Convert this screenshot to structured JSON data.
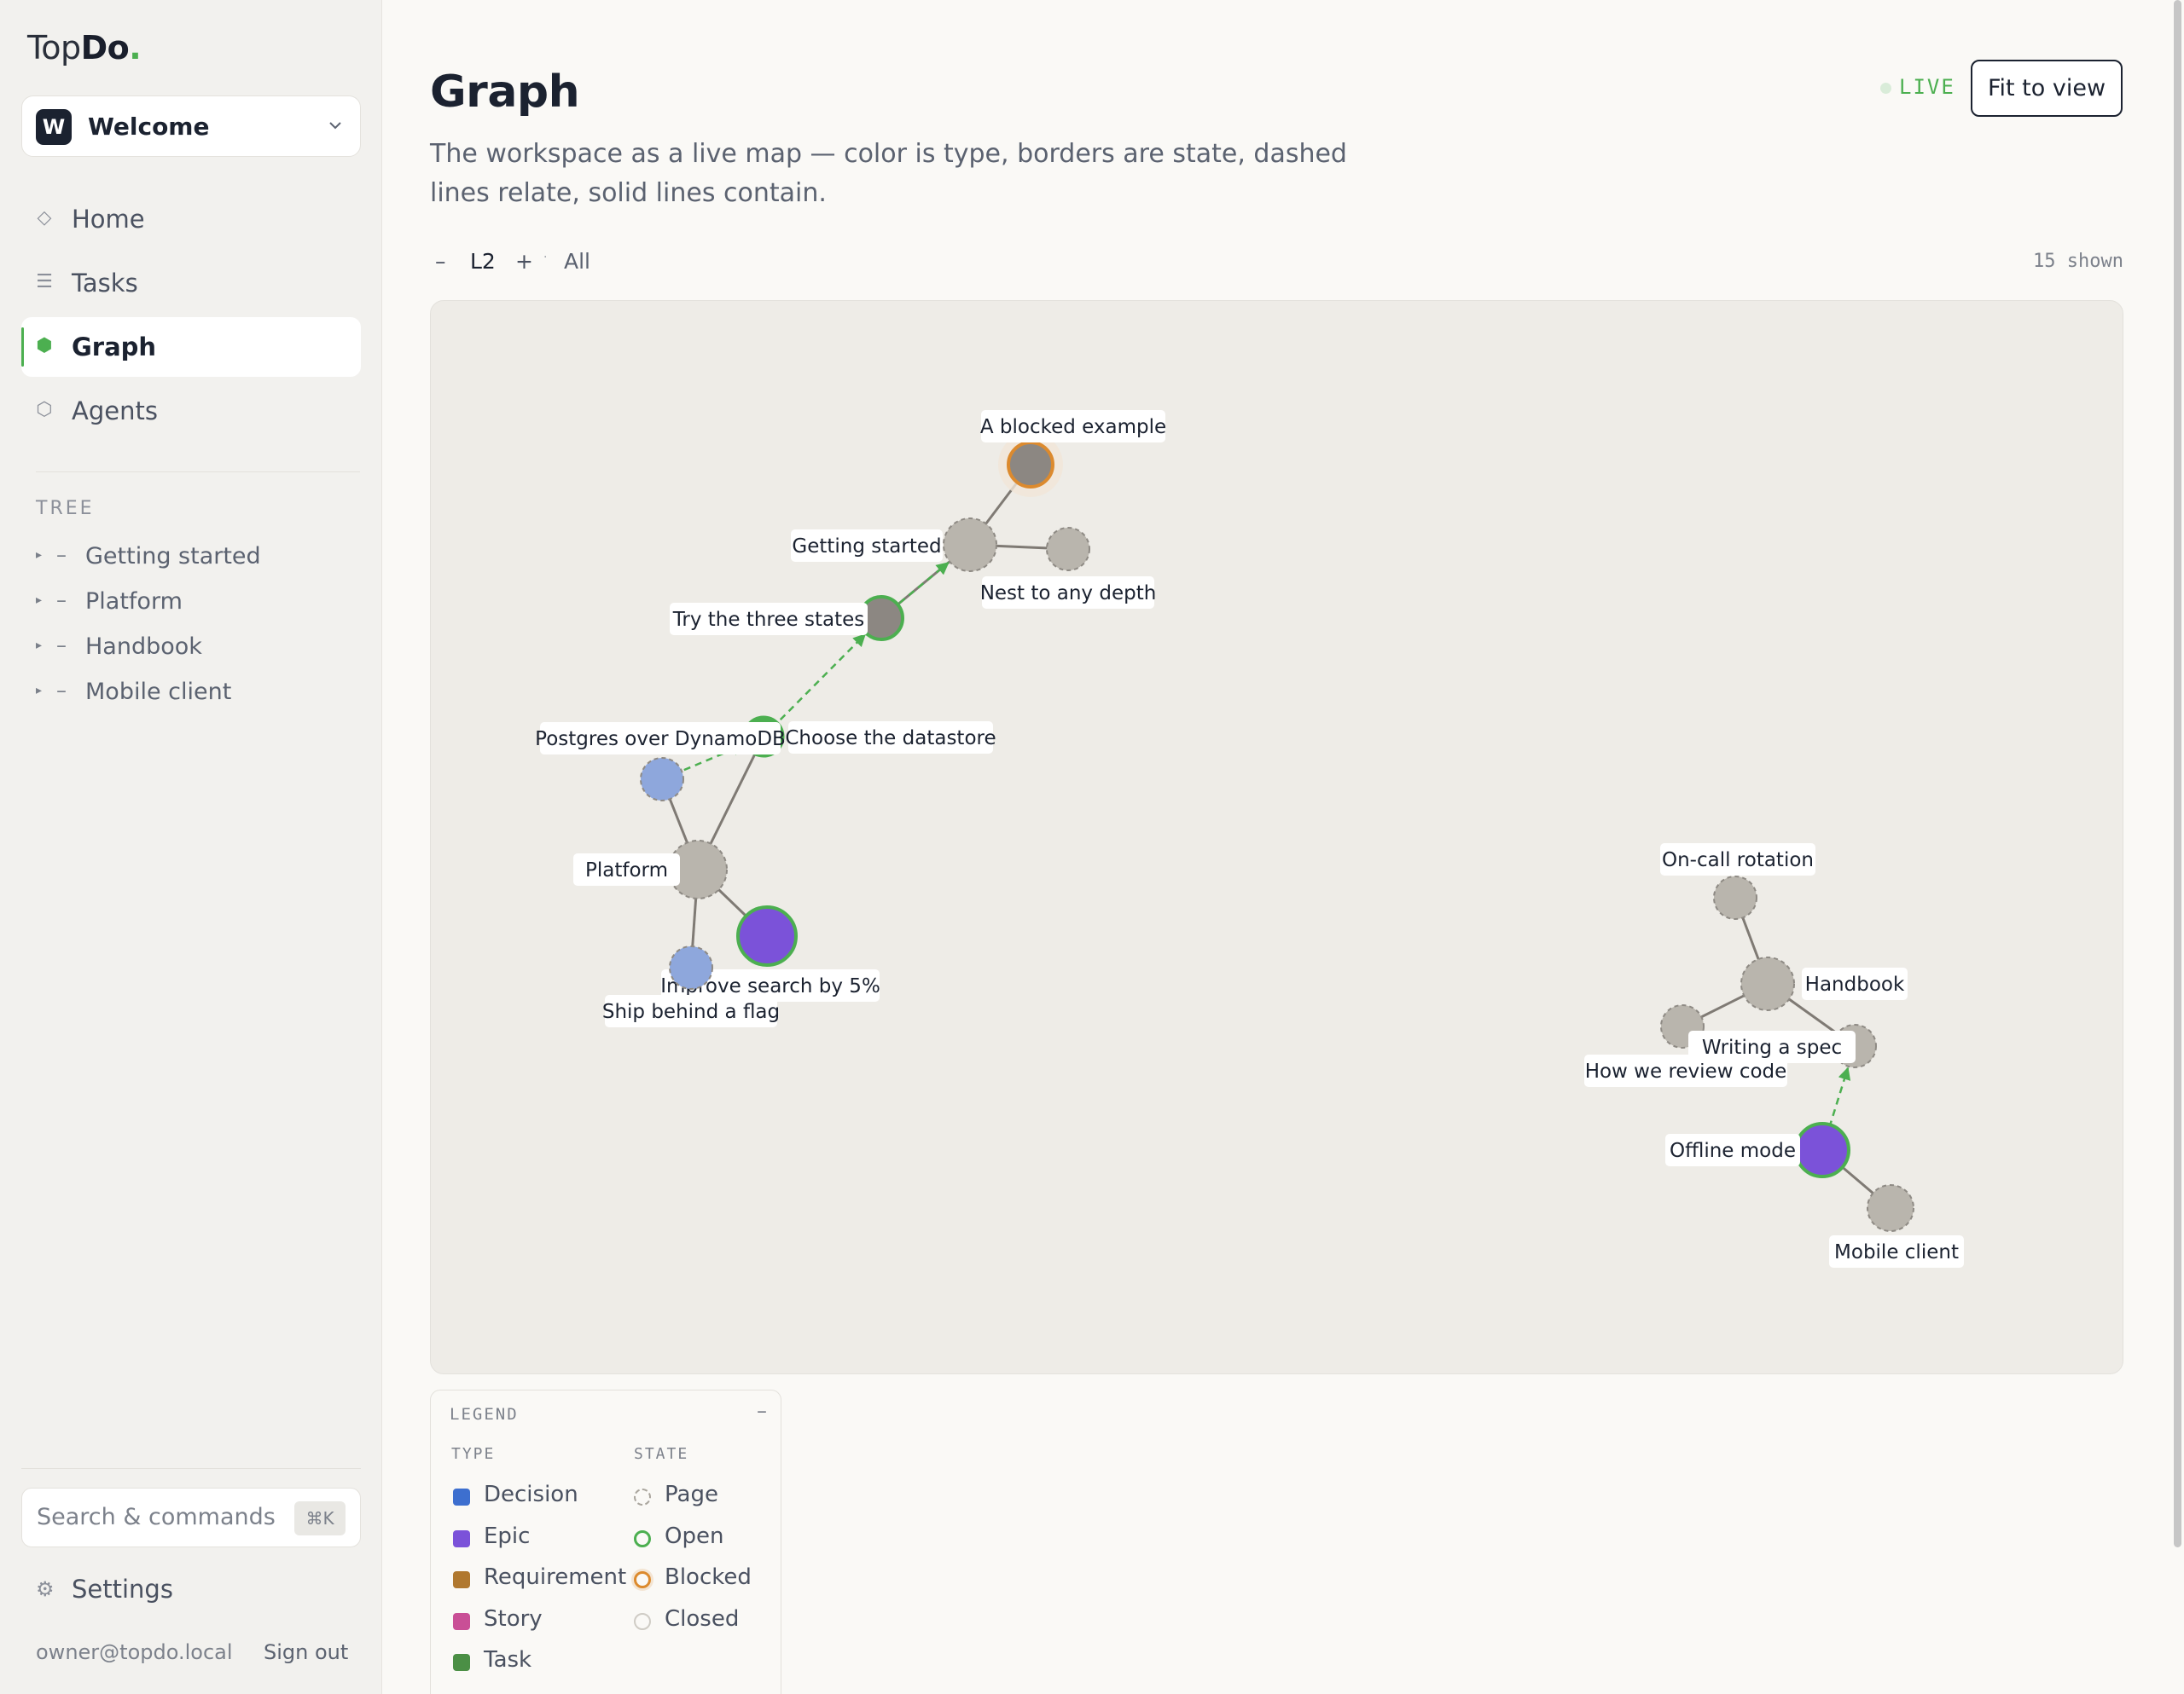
{
  "brand": {
    "part1": "Top",
    "part2": "Do",
    "dot": "."
  },
  "workspace": {
    "initial": "W",
    "name": "Welcome"
  },
  "nav": [
    {
      "label": "Home",
      "icon": "diamond-icon",
      "glyph": "◇"
    },
    {
      "label": "Tasks",
      "icon": "list-icon",
      "glyph": "☰"
    },
    {
      "label": "Graph",
      "icon": "hexagon-icon",
      "glyph": "⬢",
      "active": true
    },
    {
      "label": "Agents",
      "icon": "hexagon-outline-icon",
      "glyph": "⬡"
    }
  ],
  "tree": {
    "heading": "TREE",
    "items": [
      {
        "label": "Getting started"
      },
      {
        "label": "Platform"
      },
      {
        "label": "Handbook"
      },
      {
        "label": "Mobile client"
      }
    ]
  },
  "search": {
    "placeholder": "Search & commands",
    "shortcut": "⌘K"
  },
  "settings": {
    "label": "Settings"
  },
  "user": {
    "email": "owner@topdo.local",
    "signout": "Sign out"
  },
  "page": {
    "title": "Graph",
    "subtitle": "The workspace as a live map — color is type, borders are state, dashed lines relate, solid lines contain."
  },
  "live": {
    "label": "LIVE"
  },
  "fit_button": "Fit to view",
  "depth": {
    "minus": "–",
    "level": "L2",
    "plus": "+",
    "sep": "·",
    "all": "All"
  },
  "shown_count": "15 shown",
  "colors": {
    "accent": "#4caf50",
    "epic": "#7b52d9",
    "decision": "#3d6fcf",
    "requirement": "#b0782f",
    "story": "#c94f96",
    "task": "#4b8f45",
    "page": "#b9b5ad",
    "blocked": "#dc8a2e"
  },
  "graph": {
    "nodes": [
      {
        "id": "blocked",
        "label": "A blocked example",
        "kind": "blocked"
      },
      {
        "id": "getting",
        "label": "Getting started",
        "kind": "page"
      },
      {
        "id": "nest",
        "label": "Nest to any depth",
        "kind": "page"
      },
      {
        "id": "three",
        "label": "Try the three states",
        "kind": "open-gray"
      },
      {
        "id": "datastore",
        "label": "Choose the datastore",
        "kind": "open-green"
      },
      {
        "id": "postgres",
        "label": "Postgres over DynamoDB",
        "kind": "decision-page"
      },
      {
        "id": "platform",
        "label": "Platform",
        "kind": "page"
      },
      {
        "id": "improve",
        "label": "Improve search by 5%",
        "kind": "epic-open"
      },
      {
        "id": "flag",
        "label": "Ship behind a flag",
        "kind": "decision-page"
      },
      {
        "id": "oncall",
        "label": "On-call rotation",
        "kind": "page"
      },
      {
        "id": "handbook",
        "label": "Handbook",
        "kind": "page"
      },
      {
        "id": "review",
        "label": "How we review code",
        "kind": "page"
      },
      {
        "id": "spec",
        "label": "Writing a spec",
        "kind": "page"
      },
      {
        "id": "offline",
        "label": "Offline mode",
        "kind": "epic-open"
      },
      {
        "id": "mobile",
        "label": "Mobile client",
        "kind": "page"
      }
    ],
    "edges": [
      {
        "from": "blocked",
        "to": "getting",
        "style": "solid"
      },
      {
        "from": "getting",
        "to": "nest",
        "style": "solid"
      },
      {
        "from": "getting",
        "to": "three",
        "style": "solid"
      },
      {
        "from": "three",
        "to": "getting",
        "style": "dashed"
      },
      {
        "from": "datastore",
        "to": "three",
        "style": "dashed"
      },
      {
        "from": "postgres",
        "to": "datastore",
        "style": "dashed"
      },
      {
        "from": "platform",
        "to": "datastore",
        "style": "solid"
      },
      {
        "from": "platform",
        "to": "postgres",
        "style": "solid"
      },
      {
        "from": "platform",
        "to": "improve",
        "style": "solid"
      },
      {
        "from": "platform",
        "to": "flag",
        "style": "solid"
      },
      {
        "from": "handbook",
        "to": "oncall",
        "style": "solid"
      },
      {
        "from": "handbook",
        "to": "review",
        "style": "solid"
      },
      {
        "from": "handbook",
        "to": "spec",
        "style": "solid"
      },
      {
        "from": "offline",
        "to": "spec",
        "style": "dashed"
      },
      {
        "from": "offline",
        "to": "mobile",
        "style": "solid"
      }
    ]
  },
  "legend": {
    "title": "LEGEND",
    "collapse": "–",
    "type_heading": "TYPE",
    "state_heading": "STATE",
    "types": [
      {
        "label": "Decision",
        "color": "#3d6fcf"
      },
      {
        "label": "Epic",
        "color": "#7b52d9"
      },
      {
        "label": "Requirement",
        "color": "#b0782f"
      },
      {
        "label": "Story",
        "color": "#c94f96"
      },
      {
        "label": "Task",
        "color": "#4b8f45"
      }
    ],
    "states": [
      {
        "label": "Page",
        "style": "dashed-gray"
      },
      {
        "label": "Open",
        "style": "green"
      },
      {
        "label": "Blocked",
        "style": "orange"
      },
      {
        "label": "Closed",
        "style": "light-gray"
      }
    ]
  }
}
